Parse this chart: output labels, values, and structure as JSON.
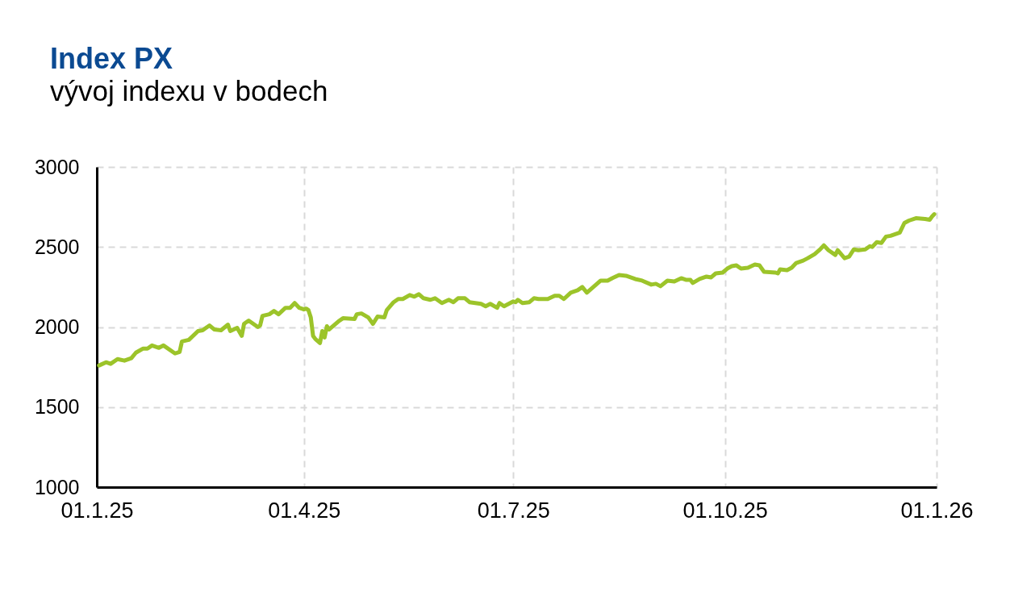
{
  "chart_data": {
    "type": "line",
    "title": "Index PX",
    "subtitle": "vývoj indexu v bodech",
    "x": [
      "2025-01-02",
      "2025-01-05",
      "2025-01-07",
      "2025-01-10",
      "2025-01-13",
      "2025-01-16",
      "2025-01-18",
      "2025-01-21",
      "2025-01-23",
      "2025-01-25",
      "2025-01-28",
      "2025-01-30",
      "2025-02-04",
      "2025-02-06",
      "2025-02-07",
      "2025-02-10",
      "2025-02-14",
      "2025-02-16",
      "2025-02-19",
      "2025-02-21",
      "2025-02-24",
      "2025-02-27",
      "2025-02-28",
      "2025-03-03",
      "2025-03-05",
      "2025-03-06",
      "2025-03-08",
      "2025-03-12",
      "2025-03-13",
      "2025-03-14",
      "2025-03-17",
      "2025-03-19",
      "2025-03-21",
      "2025-03-24",
      "2025-03-26",
      "2025-03-28",
      "2025-03-30",
      "2025-04-01",
      "2025-04-02",
      "2025-04-03",
      "2025-04-04",
      "2025-04-05",
      "2025-04-06",
      "2025-04-08",
      "2025-04-09",
      "2025-04-10",
      "2025-04-11",
      "2025-04-12",
      "2025-04-16",
      "2025-04-18",
      "2025-04-23",
      "2025-04-24",
      "2025-04-26",
      "2025-04-29",
      "2025-05-01",
      "2025-05-03",
      "2025-05-06",
      "2025-05-07",
      "2025-05-10",
      "2025-05-12",
      "2025-05-14",
      "2025-05-17",
      "2025-05-19",
      "2025-05-21",
      "2025-05-23",
      "2025-05-26",
      "2025-05-28",
      "2025-05-31",
      "2025-06-03",
      "2025-06-05",
      "2025-06-07",
      "2025-06-10",
      "2025-06-12",
      "2025-06-17",
      "2025-06-19",
      "2025-06-21",
      "2025-06-24",
      "2025-06-25",
      "2025-06-27",
      "2025-07-01",
      "2025-07-02",
      "2025-07-03",
      "2025-07-05",
      "2025-07-08",
      "2025-07-10",
      "2025-07-12",
      "2025-07-16",
      "2025-07-19",
      "2025-07-21",
      "2025-07-23",
      "2025-07-26",
      "2025-07-29",
      "2025-07-31",
      "2025-08-02",
      "2025-08-04",
      "2025-08-08",
      "2025-08-11",
      "2025-08-13",
      "2025-08-16",
      "2025-08-19",
      "2025-08-23",
      "2025-08-26",
      "2025-08-30",
      "2025-09-01",
      "2025-09-03",
      "2025-09-06",
      "2025-09-09",
      "2025-09-12",
      "2025-09-14",
      "2025-09-16",
      "2025-09-17",
      "2025-09-20",
      "2025-09-23",
      "2025-09-25",
      "2025-09-27",
      "2025-09-30",
      "2025-10-02",
      "2025-10-04",
      "2025-10-06",
      "2025-10-08",
      "2025-10-11",
      "2025-10-14",
      "2025-10-16",
      "2025-10-18",
      "2025-10-23",
      "2025-10-24",
      "2025-10-25",
      "2025-10-28",
      "2025-10-30",
      "2025-11-01",
      "2025-11-04",
      "2025-11-06",
      "2025-11-09",
      "2025-11-11",
      "2025-11-13",
      "2025-11-15",
      "2025-11-18",
      "2025-11-19",
      "2025-11-22",
      "2025-11-24",
      "2025-11-26",
      "2025-11-28",
      "2025-12-01",
      "2025-12-03",
      "2025-12-04",
      "2025-12-06",
      "2025-12-08",
      "2025-12-10",
      "2025-12-12",
      "2025-12-14",
      "2025-12-16",
      "2025-12-18",
      "2025-12-20",
      "2025-12-23",
      "2025-12-27",
      "2025-12-29",
      "2025-12-30",
      "2025-12-31"
    ],
    "series": [
      {
        "color": "#9cc42a",
        "values": [
          1760,
          1780,
          1770,
          1800,
          1790,
          1805,
          1840,
          1865,
          1865,
          1885,
          1870,
          1885,
          1835,
          1845,
          1910,
          1920,
          1975,
          1980,
          2010,
          1985,
          1980,
          2015,
          1975,
          1995,
          1945,
          2020,
          2040,
          2000,
          2010,
          2070,
          2080,
          2100,
          2080,
          2120,
          2120,
          2150,
          2120,
          2110,
          2115,
          2105,
          2060,
          1945,
          1925,
          1900,
          1975,
          1935,
          2005,
          1985,
          2035,
          2055,
          2050,
          2080,
          2085,
          2060,
          2020,
          2065,
          2060,
          2105,
          2155,
          2175,
          2175,
          2200,
          2190,
          2205,
          2180,
          2170,
          2180,
          2150,
          2170,
          2155,
          2180,
          2180,
          2155,
          2145,
          2130,
          2145,
          2120,
          2150,
          2130,
          2160,
          2155,
          2170,
          2150,
          2155,
          2180,
          2175,
          2175,
          2195,
          2195,
          2175,
          2215,
          2230,
          2250,
          2215,
          2240,
          2290,
          2290,
          2305,
          2325,
          2320,
          2300,
          2290,
          2265,
          2270,
          2255,
          2290,
          2285,
          2305,
          2295,
          2295,
          2275,
          2300,
          2315,
          2310,
          2335,
          2340,
          2365,
          2380,
          2385,
          2365,
          2370,
          2390,
          2385,
          2345,
          2340,
          2335,
          2360,
          2355,
          2370,
          2400,
          2415,
          2430,
          2455,
          2480,
          2510,
          2480,
          2450,
          2480,
          2430,
          2440,
          2485,
          2480,
          2485,
          2505,
          2500,
          2530,
          2525,
          2565,
          2570,
          2580,
          2590,
          2650,
          2665,
          2680,
          2675,
          2670,
          2690,
          2705
        ]
      }
    ],
    "xlim": [
      "2025-01-01",
      "2026-01-01"
    ],
    "xticks": [
      {
        "value": "2025-01-01",
        "label": "01.1.25"
      },
      {
        "value": "2025-04-01",
        "label": "01.4.25"
      },
      {
        "value": "2025-07-01",
        "label": "01.7.25"
      },
      {
        "value": "2025-10-01",
        "label": "01.10.25"
      },
      {
        "value": "2026-01-01",
        "label": "01.1.26"
      }
    ],
    "ylim": [
      1000,
      3000
    ],
    "yticks": [
      1000,
      1500,
      2000,
      2500,
      3000
    ],
    "grid": true
  }
}
